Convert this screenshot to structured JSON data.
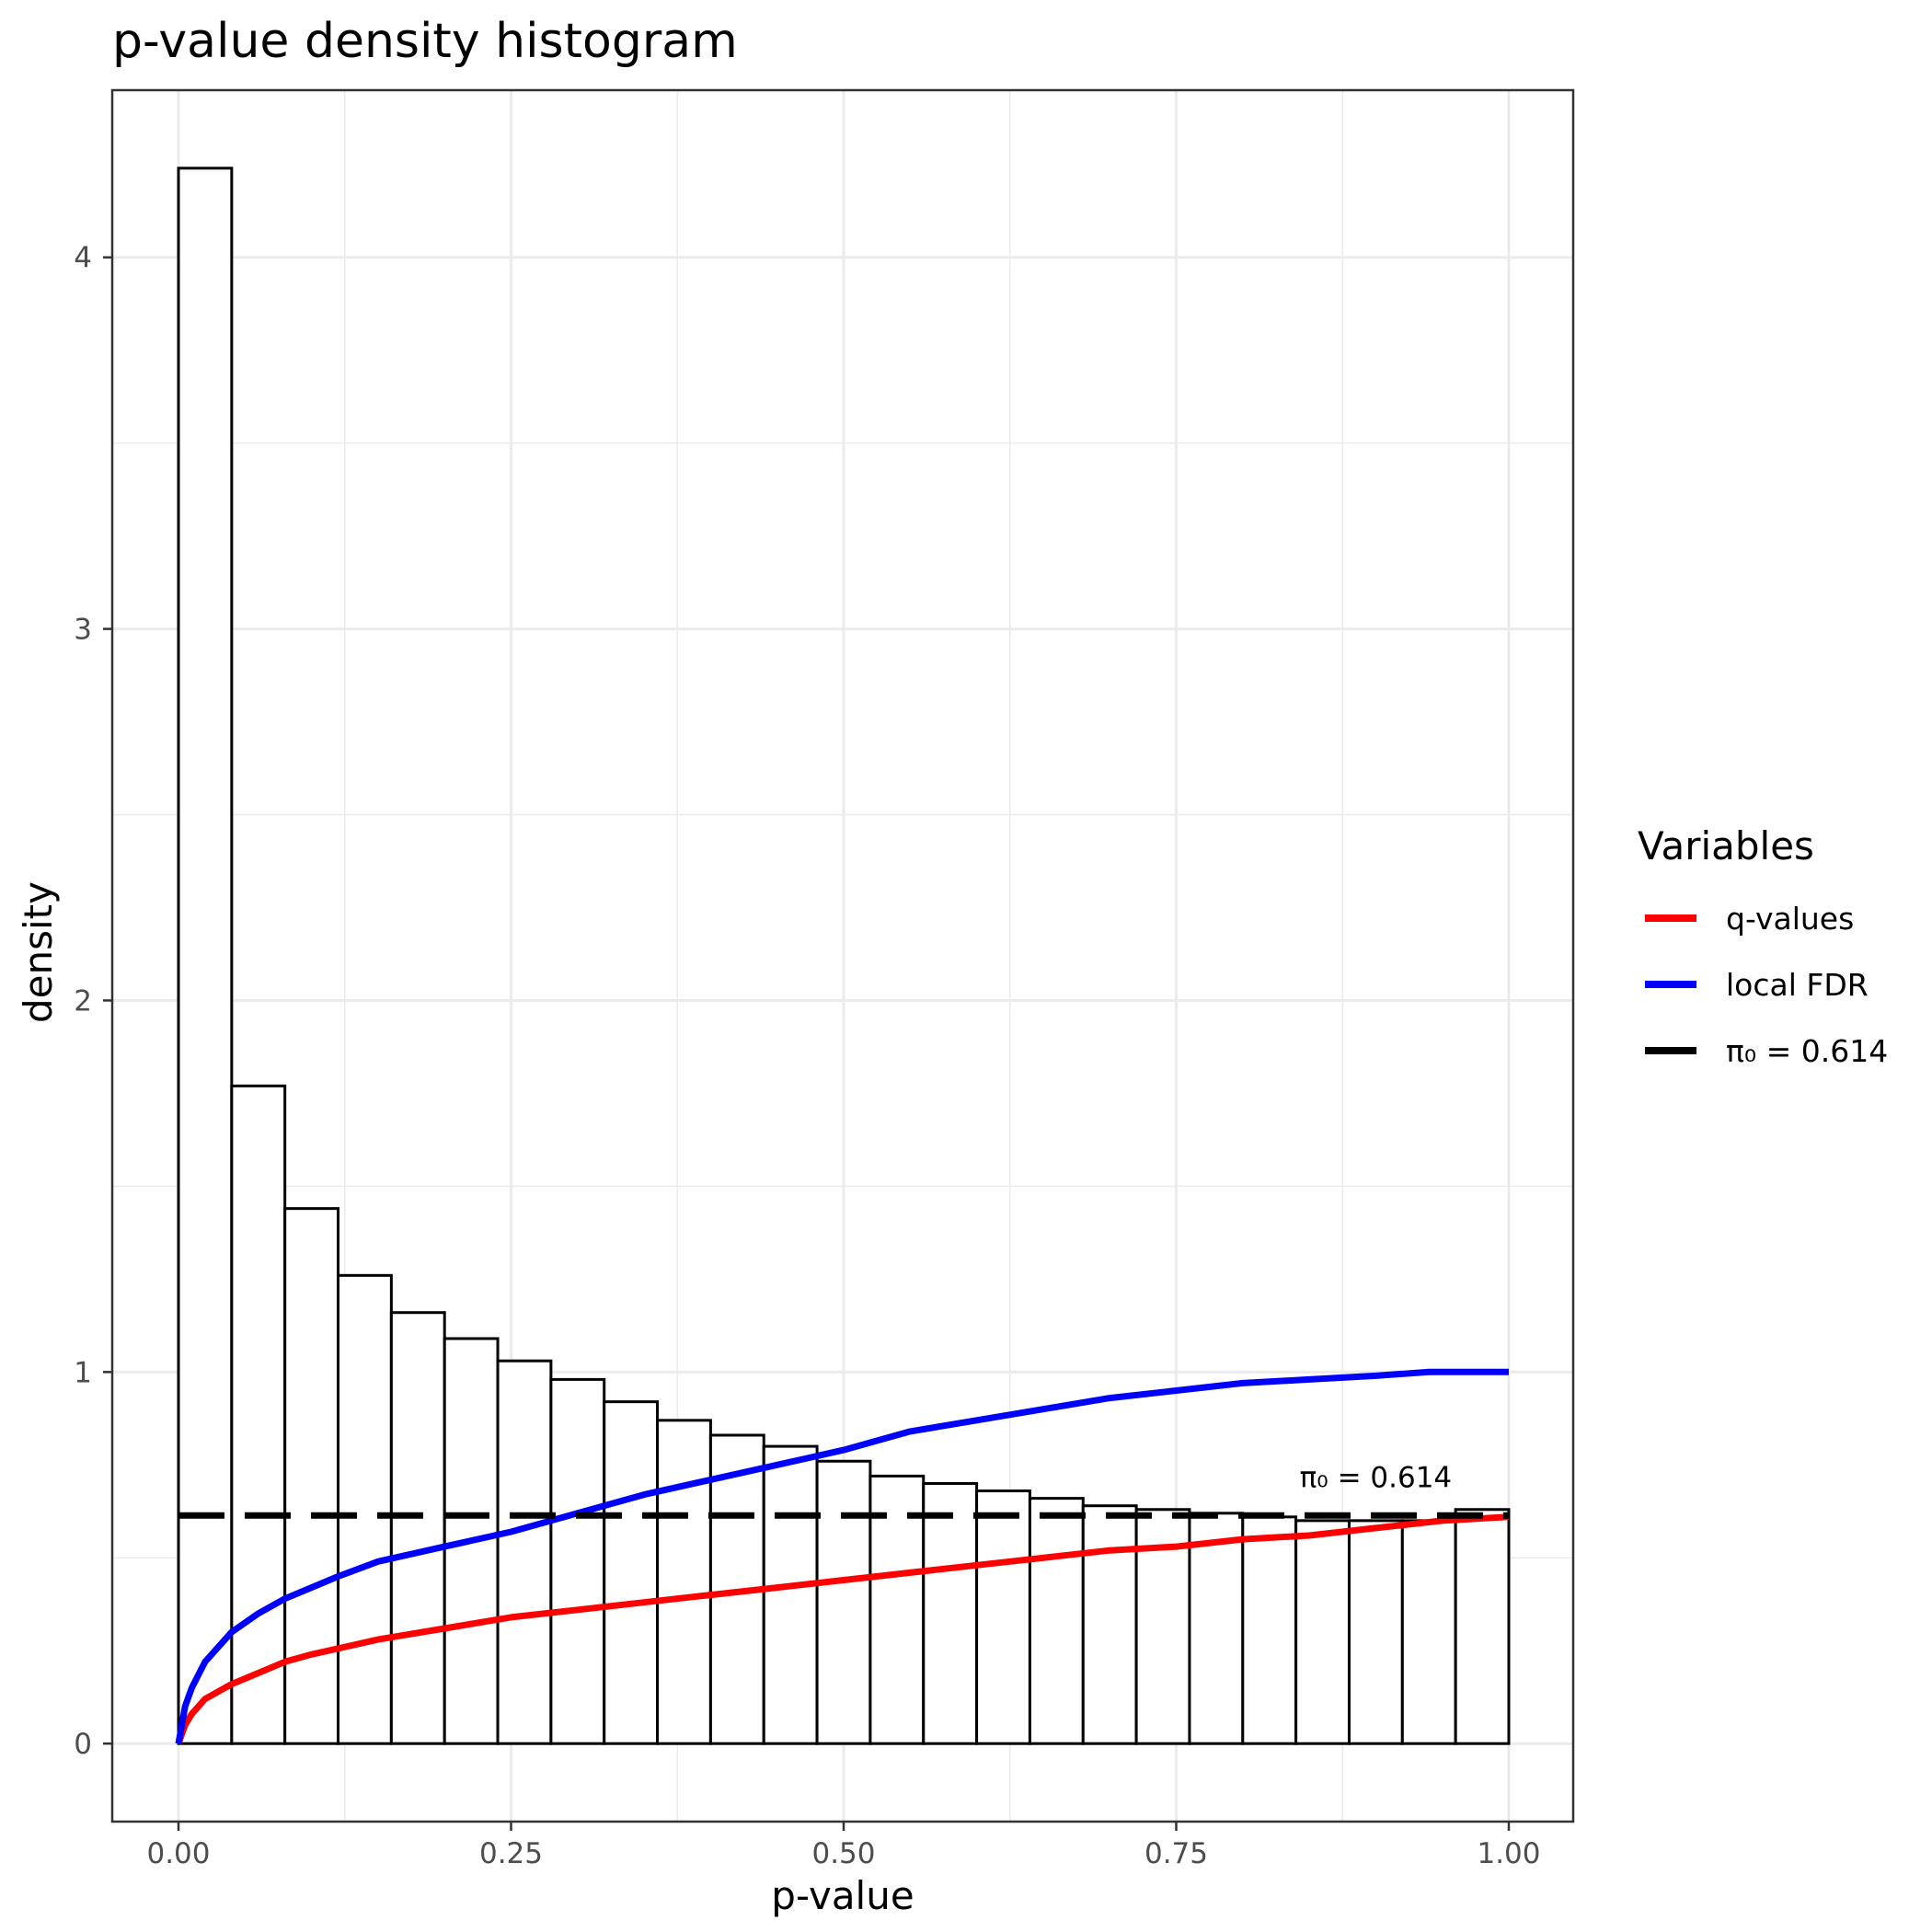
{
  "chart_data": {
    "type": "bar",
    "title": "p-value density histogram",
    "xlabel": "p-value",
    "ylabel": "density",
    "xlim": [
      -0.1,
      2.1
    ],
    "ylim": [
      -0.21,
      4.45
    ],
    "x_ticks": [
      0.0,
      0.25,
      0.5,
      0.75,
      1.0
    ],
    "x_tick_labels": [
      "0.00",
      "0.25",
      "0.50",
      "0.75",
      "1.00"
    ],
    "y_ticks": [
      0,
      1,
      2,
      3,
      4
    ],
    "y_tick_labels": [
      "0",
      "1",
      "2",
      "3",
      "4"
    ],
    "grid": true,
    "histogram": {
      "bin_edges": [
        0.0,
        0.04,
        0.08,
        0.12,
        0.16,
        0.2,
        0.24,
        0.28,
        0.32,
        0.36,
        0.4,
        0.44,
        0.48,
        0.52,
        0.56,
        0.6,
        0.64,
        0.68,
        0.72,
        0.76,
        0.8,
        0.84,
        0.88,
        0.92,
        0.96,
        1.0
      ],
      "densities": [
        4.24,
        1.77,
        1.44,
        1.26,
        1.16,
        1.09,
        1.03,
        0.98,
        0.92,
        0.87,
        0.83,
        0.8,
        0.76,
        0.72,
        0.7,
        0.68,
        0.66,
        0.64,
        0.63,
        0.62,
        0.61,
        0.6,
        0.6,
        0.6,
        0.63
      ]
    },
    "series": [
      {
        "name": "q-values",
        "color": "#FF0000",
        "line_style": "solid",
        "x": [
          0.0,
          0.005,
          0.01,
          0.02,
          0.04,
          0.06,
          0.08,
          0.1,
          0.15,
          0.2,
          0.25,
          0.3,
          0.35,
          0.4,
          0.45,
          0.5,
          0.55,
          0.6,
          0.65,
          0.7,
          0.75,
          0.8,
          0.85,
          0.9,
          0.95,
          1.0
        ],
        "y": [
          0.0,
          0.05,
          0.08,
          0.12,
          0.16,
          0.19,
          0.22,
          0.24,
          0.28,
          0.31,
          0.34,
          0.36,
          0.38,
          0.4,
          0.42,
          0.44,
          0.46,
          0.48,
          0.5,
          0.52,
          0.53,
          0.55,
          0.56,
          0.58,
          0.6,
          0.61
        ]
      },
      {
        "name": "local FDR",
        "color": "#0000FF",
        "line_style": "solid",
        "x": [
          0.0,
          0.005,
          0.01,
          0.02,
          0.04,
          0.06,
          0.08,
          0.1,
          0.12,
          0.15,
          0.2,
          0.25,
          0.3,
          0.35,
          0.4,
          0.45,
          0.5,
          0.55,
          0.6,
          0.65,
          0.7,
          0.75,
          0.8,
          0.85,
          0.9,
          0.94,
          1.0
        ],
        "y": [
          0.0,
          0.1,
          0.15,
          0.22,
          0.3,
          0.35,
          0.39,
          0.42,
          0.45,
          0.49,
          0.53,
          0.57,
          0.62,
          0.67,
          0.71,
          0.75,
          0.79,
          0.84,
          0.87,
          0.9,
          0.93,
          0.95,
          0.97,
          0.98,
          0.99,
          1.0,
          1.0
        ]
      },
      {
        "name": "π₀ = 0.614",
        "color": "#000000",
        "line_style": "dashed",
        "x": [
          0.0,
          1.0
        ],
        "y": [
          0.614,
          0.614
        ]
      }
    ],
    "annotations": [
      {
        "text": "π₀ = 0.614",
        "x": 0.9,
        "y": 0.69
      }
    ],
    "legend": {
      "title": "Variables",
      "position": "right",
      "items": [
        "q-values",
        "local FDR",
        "π₀ = 0.614"
      ]
    }
  }
}
